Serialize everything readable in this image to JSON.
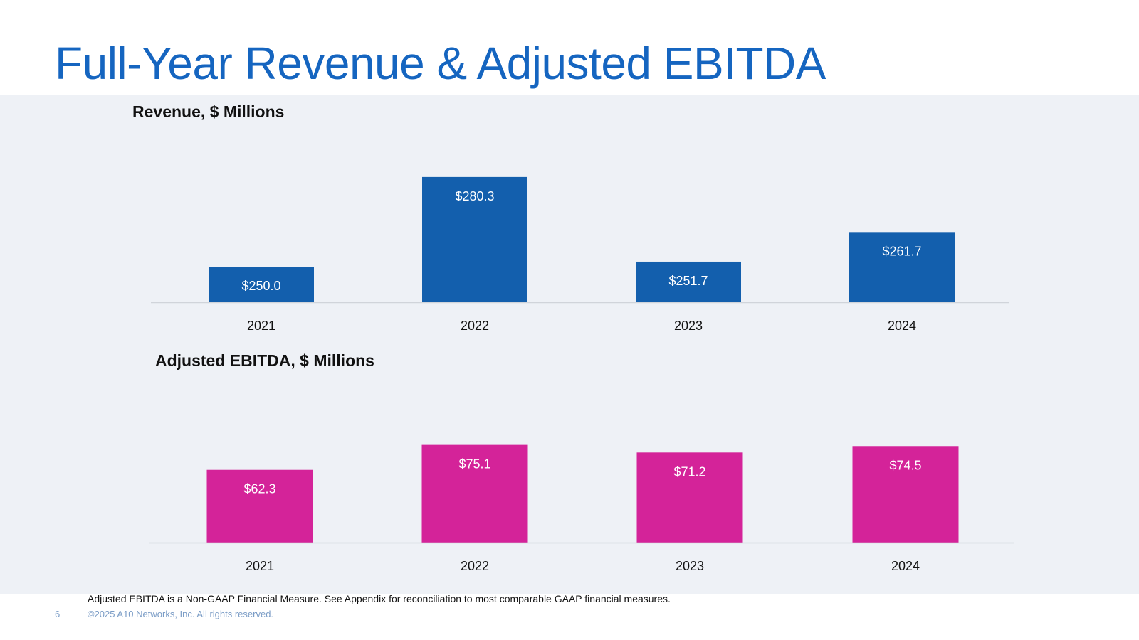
{
  "slide": {
    "title": "Full-Year Revenue & Adjusted EBITDA",
    "footnote": "Adjusted EBITDA is a Non-GAAP Financial Measure. See Appendix for reconciliation to most comparable GAAP financial measures.",
    "page_number": "6",
    "copyright": "©2025 A10 Networks, Inc. All rights reserved."
  },
  "colors": {
    "title": "#1565c0",
    "revenue_bar": "#135fad",
    "ebitda_bar": "#d42399",
    "panel_bg": "#eef1f6",
    "axis_line": "#d0d4da"
  },
  "chart_data": [
    {
      "type": "bar",
      "title": "Revenue, $ Millions",
      "categories": [
        "2021",
        "2022",
        "2023",
        "2024"
      ],
      "values": [
        250.0,
        280.3,
        251.7,
        261.7
      ],
      "data_labels": [
        "$250.0",
        "$280.3",
        "$251.7",
        "$261.7"
      ],
      "xlabel": "",
      "ylabel": "",
      "ylim": [
        238,
        287
      ],
      "grid": false,
      "legend": "none"
    },
    {
      "type": "bar",
      "title": "Adjusted EBITDA, $ Millions",
      "categories": [
        "2021",
        "2022",
        "2023",
        "2024"
      ],
      "values": [
        62.3,
        75.1,
        71.2,
        74.5
      ],
      "data_labels": [
        "$62.3",
        "$75.1",
        "$71.2",
        "$74.5"
      ],
      "xlabel": "",
      "ylabel": "",
      "ylim": [
        25,
        87
      ],
      "grid": false,
      "legend": "none"
    }
  ]
}
